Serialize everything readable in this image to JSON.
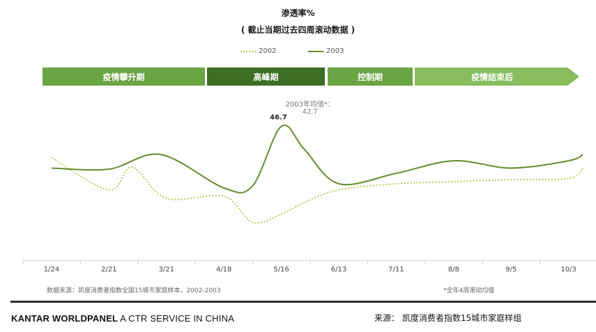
{
  "chart_data": {
    "type": "line",
    "title": "渗透率%",
    "subtitle": "( 截止当期过去四周滚动数据 )",
    "categories": [
      "1/24",
      "2/21",
      "3/21",
      "4/18",
      "5/16",
      "6/13",
      "7/11",
      "8/8",
      "9/5",
      "10/3"
    ],
    "series": [
      {
        "name": "2002",
        "style": "dotted",
        "color": "#a5cf45",
        "x": [
          0,
          1,
          1.4,
          2,
          3,
          3.5,
          4,
          4.4,
          5,
          6,
          7,
          8,
          9,
          9.25
        ],
        "values": [
          43.7,
          40.6,
          42.8,
          39.8,
          40.0,
          37.5,
          38.3,
          39.4,
          40.6,
          41.2,
          41.4,
          41.6,
          41.7,
          42.7
        ]
      },
      {
        "name": "2003",
        "style": "solid",
        "color": "#5e8f2e",
        "x": [
          0,
          1,
          1.9,
          3,
          3.5,
          4,
          4.4,
          5,
          6,
          7,
          8,
          9,
          9.25
        ],
        "values": [
          42.7,
          42.6,
          44.0,
          40.8,
          41.0,
          46.7,
          44.5,
          41.2,
          42.2,
          43.4,
          42.7,
          43.4,
          44.0
        ]
      }
    ],
    "annotations": [
      {
        "text": "46.7",
        "x": 3.95,
        "y": 46.7
      },
      {
        "text": "2003年均值*：",
        "x": 4.5,
        "y": 48.6
      },
      {
        "text": "42.7",
        "x": 4.5,
        "y": 47.9
      }
    ],
    "phases": [
      {
        "label": "疫情攀升期",
        "color": "#6aa443"
      },
      {
        "label": "高峰期",
        "color": "#3d6e23"
      },
      {
        "label": "控制期",
        "color": "#6aa443"
      },
      {
        "label": "疫情结束后",
        "color": "#88bd5e"
      }
    ],
    "ylim": [
      34,
      50
    ],
    "grid": false,
    "legend_position": "top-center"
  },
  "footer": {
    "source_note": "数据来源：凯度消费者指数全国15城市家庭样本，2002-2003",
    "avg_footnote": "*全年4周滚动均值",
    "brand_strong": "KANTAR WORLDPANEL",
    "brand_rest": " A CTR SERVICE IN CHINA",
    "source": "来源： 凯度消费者指数15城市家庭样组"
  }
}
